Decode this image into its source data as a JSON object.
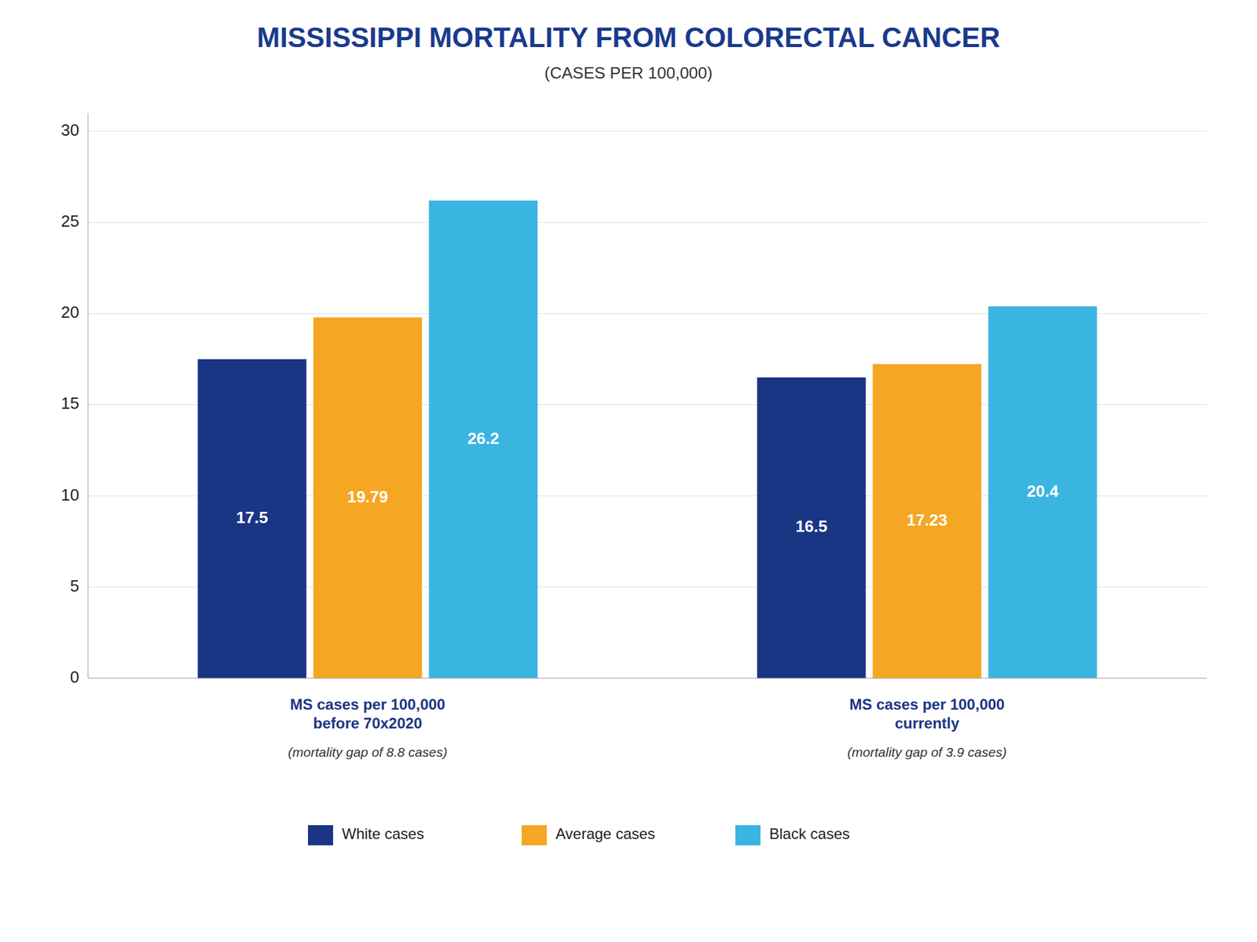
{
  "chart_data": {
    "type": "bar",
    "title": "MISSISSIPPI MORTALITY FROM COLORECTAL CANCER",
    "subtitle": "(CASES PER 100,000)",
    "categories": [
      "MS cases per 100,000\nbefore 70x2020",
      "MS cases per 100,000\ncurrently"
    ],
    "annotations": [
      "(mortality gap of 8.8 cases)",
      "(mortality gap of 3.9 cases)"
    ],
    "series": [
      {
        "name": "White cases",
        "color": "#1b3585",
        "values": [
          17.5,
          16.5
        ]
      },
      {
        "name": "Average cases",
        "color": "#f5a623",
        "values": [
          19.79,
          17.23
        ]
      },
      {
        "name": "Black cases",
        "color": "#3ab4e0",
        "values": [
          26.2,
          20.4
        ]
      }
    ],
    "ylim": [
      0,
      31
    ],
    "yticks": [
      0,
      5,
      10,
      15,
      20,
      25,
      30
    ],
    "grid": true,
    "legend": "bottom",
    "data_labels": true
  }
}
